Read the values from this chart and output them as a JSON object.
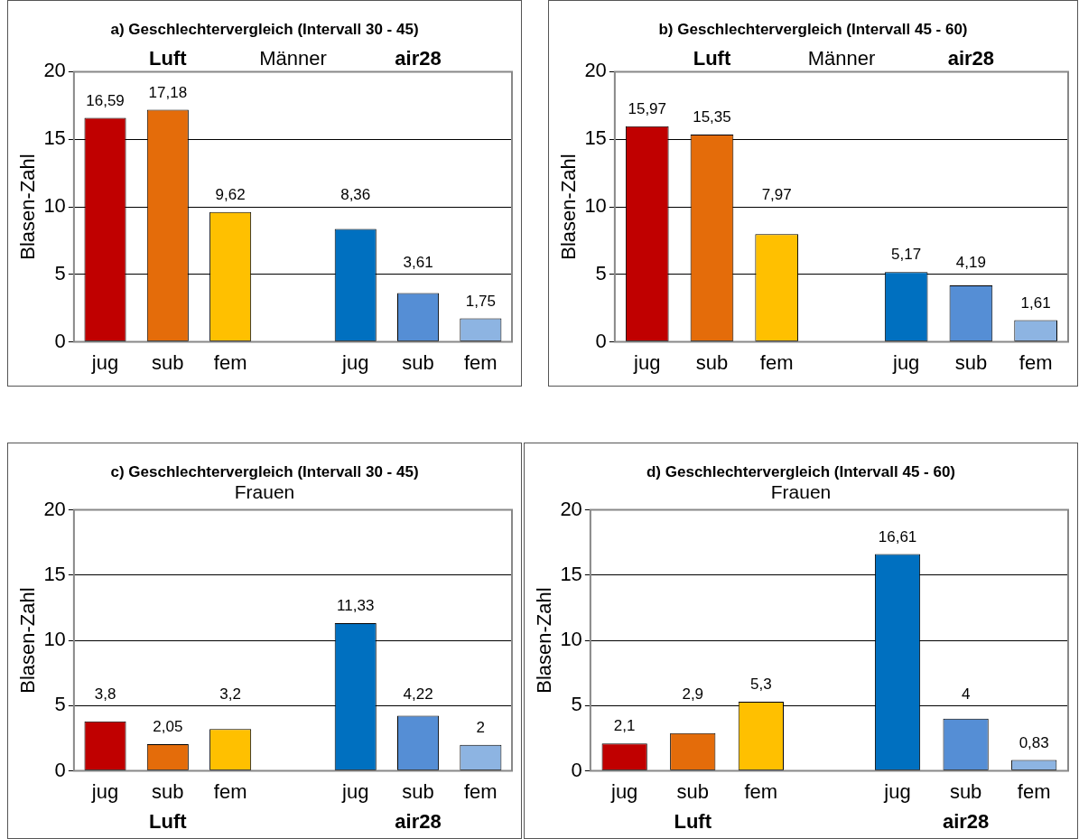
{
  "chart_data": [
    {
      "type": "bar",
      "title": "a) Geschlechtervergleich (Intervall 30 - 45)",
      "subtitle": "Männer",
      "annotations": [
        "Luft",
        "air28"
      ],
      "ylabel": "Blasen-Zahl",
      "categories": [
        "jug",
        "sub",
        "fem",
        null,
        "jug",
        "sub",
        "fem"
      ],
      "values": [
        16.59,
        17.18,
        9.62,
        null,
        8.36,
        3.61,
        1.75
      ],
      "value_labels": [
        "16,59",
        "17,18",
        "9,62",
        null,
        "8,36",
        "3,61",
        "1,75"
      ],
      "colors": [
        "#c00000",
        "#e46c0a",
        "#ffc000",
        "#ffffff",
        "#0070c0",
        "#558ed5",
        "#8db4e2"
      ],
      "ylim": [
        0,
        20
      ],
      "yticks": [
        0,
        5,
        10,
        15,
        20
      ],
      "grid": "y",
      "legend": false
    },
    {
      "type": "bar",
      "title": "b) Geschlechtervergleich (Intervall 45 - 60)",
      "subtitle": "Männer",
      "annotations": [
        "Luft",
        "air28"
      ],
      "ylabel": "Blasen-Zahl",
      "categories": [
        "jug",
        "sub",
        "fem",
        null,
        "jug",
        "sub",
        "fem"
      ],
      "values": [
        15.97,
        15.35,
        7.97,
        null,
        5.17,
        4.19,
        1.61
      ],
      "value_labels": [
        "15,97",
        "15,35",
        "7,97",
        null,
        "5,17",
        "4,19",
        "1,61"
      ],
      "colors": [
        "#c00000",
        "#e46c0a",
        "#ffc000",
        "#ffffff",
        "#0070c0",
        "#558ed5",
        "#8db4e2"
      ],
      "ylim": [
        0,
        20
      ],
      "yticks": [
        0,
        5,
        10,
        15,
        20
      ],
      "grid": "y",
      "legend": false
    },
    {
      "type": "bar",
      "title": "c) Geschlechtervergleich (Intervall 30 - 45)",
      "subtitle": "Frauen",
      "annotations": [
        "Luft",
        "air28"
      ],
      "ylabel": "Blasen-Zahl",
      "categories": [
        "jug",
        "sub",
        "fem",
        null,
        "jug",
        "sub",
        "fem"
      ],
      "values": [
        3.8,
        2.05,
        3.2,
        null,
        11.33,
        4.22,
        2
      ],
      "value_labels": [
        "3,8",
        "2,05",
        "3,2",
        null,
        "11,33",
        "4,22",
        "2"
      ],
      "colors": [
        "#c00000",
        "#e46c0a",
        "#ffc000",
        "#ffffff",
        "#0070c0",
        "#558ed5",
        "#8db4e2"
      ],
      "ylim": [
        0,
        20
      ],
      "yticks": [
        0,
        5,
        10,
        15,
        20
      ],
      "grid": "y",
      "legend": false
    },
    {
      "type": "bar",
      "title": "d) Geschlechtervergleich (Intervall 45 - 60)",
      "subtitle": "Frauen",
      "annotations": [
        "Luft",
        "air28"
      ],
      "ylabel": "Blasen-Zahl",
      "categories": [
        "jug",
        "sub",
        "fem",
        null,
        "jug",
        "sub",
        "fem"
      ],
      "values": [
        2.1,
        2.9,
        5.3,
        null,
        16.61,
        4,
        0.83
      ],
      "value_labels": [
        "2,1",
        "2,9",
        "5,3",
        null,
        "16,61",
        "4",
        "0,83"
      ],
      "colors": [
        "#c00000",
        "#e46c0a",
        "#ffc000",
        "#ffffff",
        "#0070c0",
        "#558ed5",
        "#8db4e2"
      ],
      "ylim": [
        0,
        20
      ],
      "yticks": [
        0,
        5,
        10,
        15,
        20
      ],
      "grid": "y",
      "legend": false
    }
  ]
}
